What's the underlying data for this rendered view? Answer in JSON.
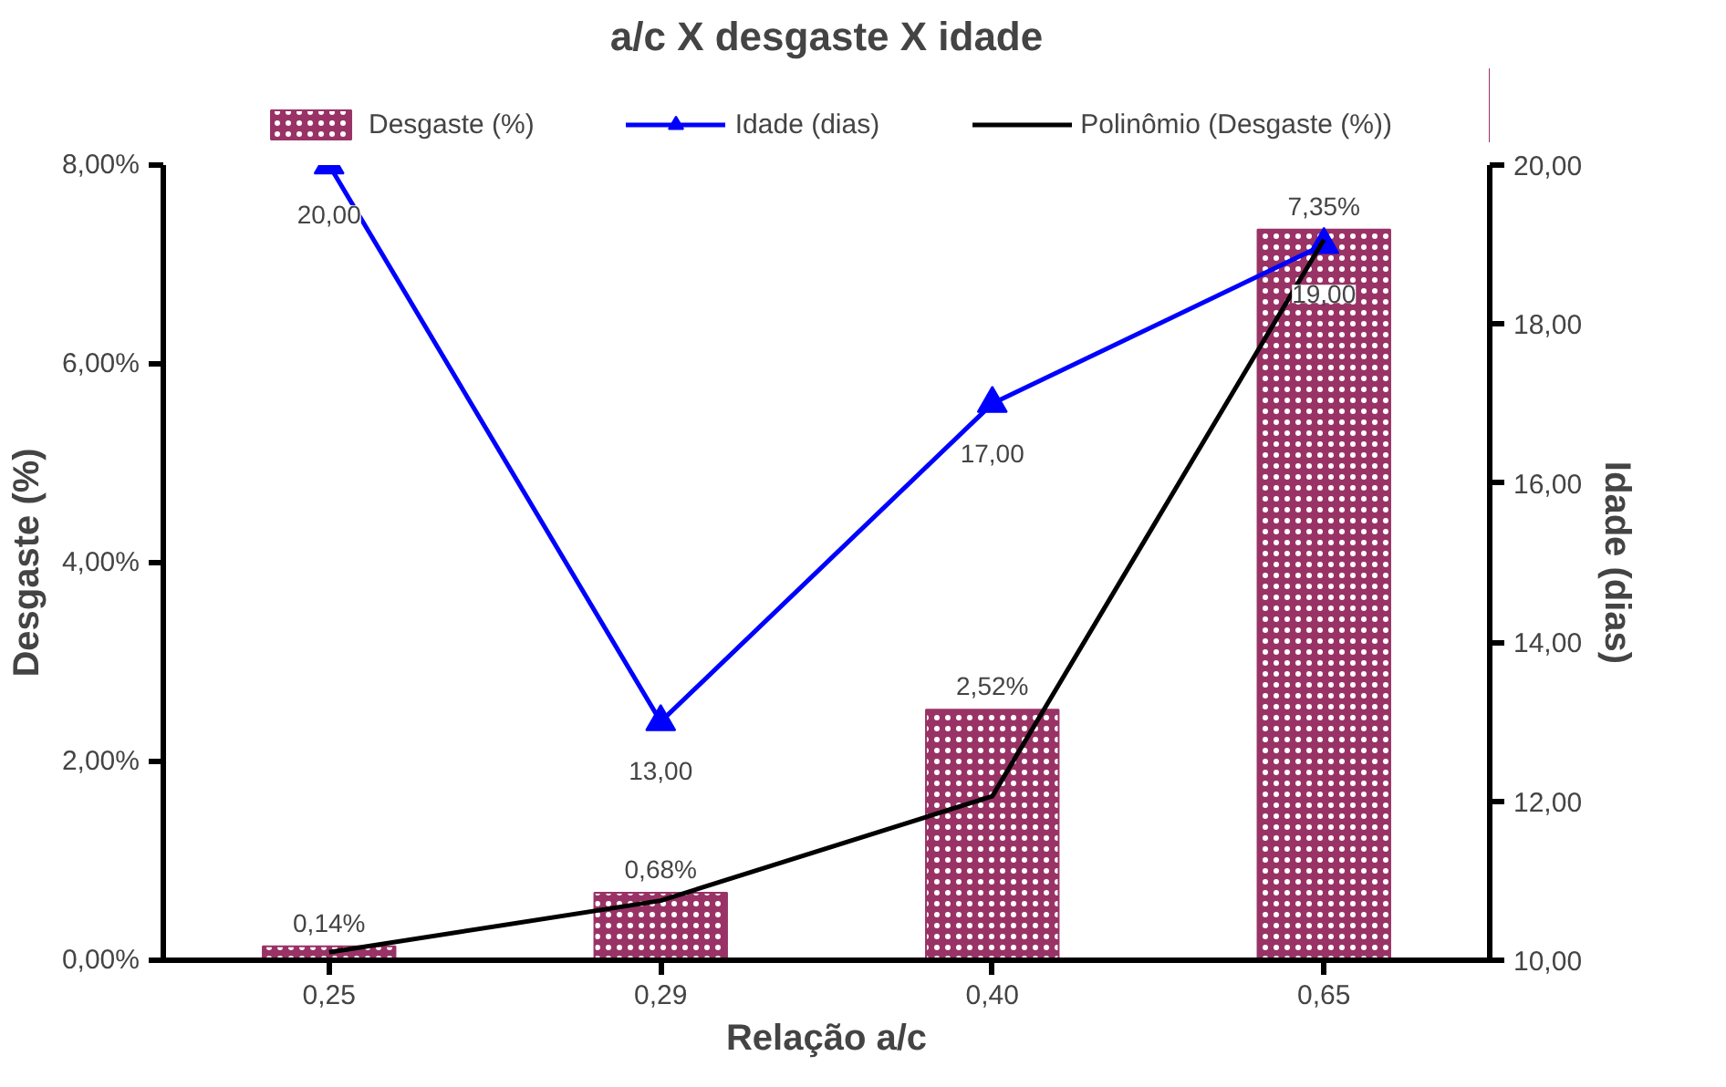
{
  "chart_data": {
    "type": "bar",
    "title": "a/c X desgaste X idade",
    "xlabel": "Relação a/c",
    "ylabel": "Desgaste (%)",
    "y2label": "Idade (dias)",
    "categories": [
      "0,25",
      "0,29",
      "0,40",
      "0,65"
    ],
    "series": [
      {
        "name": "Desgaste (%)",
        "type": "bar",
        "color": "#993366",
        "values": [
          0.14,
          0.68,
          2.52,
          7.35
        ],
        "value_labels": [
          "0,14%",
          "0,68%",
          "2,52%",
          "7,35%"
        ]
      },
      {
        "name": "Idade (dias)",
        "type": "line",
        "axis": "y2",
        "color": "#0000ff",
        "marker": "triangle",
        "values": [
          20,
          13,
          17,
          19
        ],
        "value_labels": [
          "20,00",
          "13,00",
          "17,00",
          "19,00"
        ]
      },
      {
        "name": "Polinômio (Desgaste (%))",
        "type": "line",
        "color": "#000000",
        "values": [
          0.08,
          0.6,
          1.65,
          7.25
        ]
      }
    ],
    "ylim": [
      0,
      8
    ],
    "yticks": [
      {
        "value": 0,
        "label": "0,00%"
      },
      {
        "value": 2,
        "label": "2,00%"
      },
      {
        "value": 4,
        "label": "4,00%"
      },
      {
        "value": 6,
        "label": "6,00%"
      },
      {
        "value": 8,
        "label": "8,00%"
      }
    ],
    "y2lim": [
      10,
      20
    ],
    "y2ticks": [
      {
        "value": 10,
        "label": "10,00"
      },
      {
        "value": 12,
        "label": "12,00"
      },
      {
        "value": 14,
        "label": "14,00"
      },
      {
        "value": 16,
        "label": "16,00"
      },
      {
        "value": 18,
        "label": "18,00"
      },
      {
        "value": 20,
        "label": "20,00"
      }
    ],
    "grid": false,
    "legend": "top"
  }
}
